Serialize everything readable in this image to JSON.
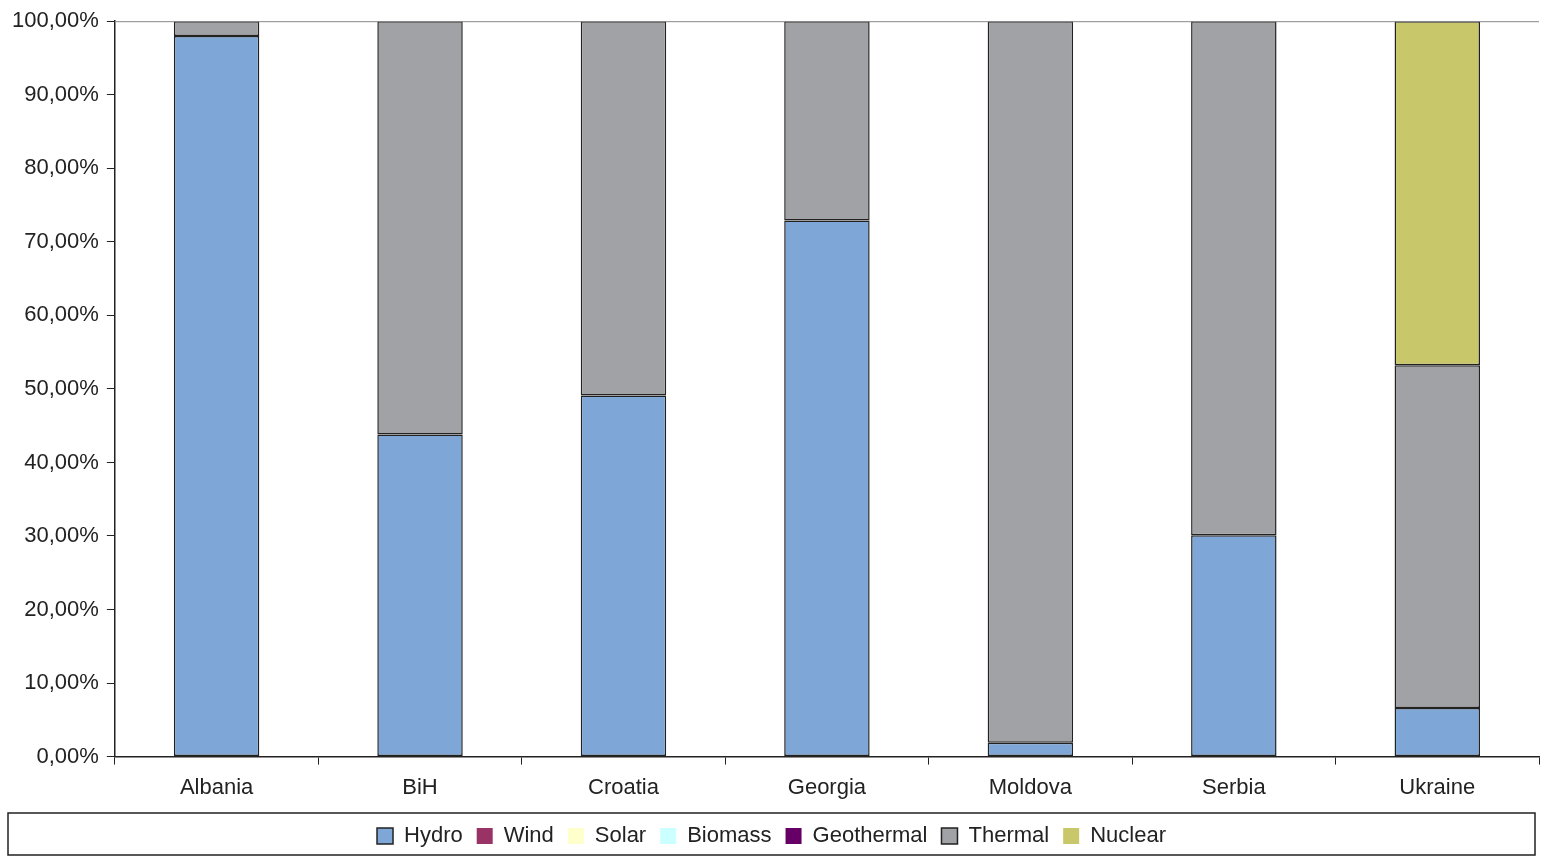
{
  "chart_data": {
    "type": "bar",
    "stacked": true,
    "categories": [
      "Albania",
      "BiH",
      "Croatia",
      "Georgia",
      "Moldova",
      "Serbia",
      "Ukraine"
    ],
    "series": [
      {
        "name": "Hydro",
        "color": "#7ea6d6",
        "values": [
          98.0,
          43.8,
          49.1,
          72.9,
          1.9,
          30.1,
          6.6
        ]
      },
      {
        "name": "Wind",
        "color": "#993366",
        "values": [
          0,
          0,
          0,
          0,
          0,
          0,
          0
        ]
      },
      {
        "name": "Solar",
        "color": "#ffffcc",
        "values": [
          0,
          0,
          0,
          0,
          0,
          0,
          0
        ]
      },
      {
        "name": "Biomass",
        "color": "#ccffff",
        "values": [
          0,
          0,
          0,
          0,
          0,
          0,
          0
        ]
      },
      {
        "name": "Geothermal",
        "color": "#660066",
        "values": [
          0,
          0,
          0,
          0,
          0,
          0,
          0
        ]
      },
      {
        "name": "Thermal",
        "color": "#a0a2a5",
        "values": [
          2.0,
          56.2,
          50.9,
          27.1,
          98.1,
          69.9,
          46.6
        ]
      },
      {
        "name": "Nuclear",
        "color": "#c8c86a",
        "values": [
          0,
          0,
          0,
          0,
          0,
          0,
          46.8
        ]
      }
    ],
    "ylim": [
      0,
      100
    ],
    "yticks": [
      {
        "value": 0,
        "label": "0,00%"
      },
      {
        "value": 10,
        "label": "10,00%"
      },
      {
        "value": 20,
        "label": "20,00%"
      },
      {
        "value": 30,
        "label": "30,00%"
      },
      {
        "value": 40,
        "label": "40,00%"
      },
      {
        "value": 50,
        "label": "50,00%"
      },
      {
        "value": 60,
        "label": "60,00%"
      },
      {
        "value": 70,
        "label": "70,00%"
      },
      {
        "value": 80,
        "label": "80,00%"
      },
      {
        "value": 90,
        "label": "90,00%"
      },
      {
        "value": 100,
        "label": "100,00%"
      }
    ],
    "grid": false,
    "legend": "bottom"
  }
}
